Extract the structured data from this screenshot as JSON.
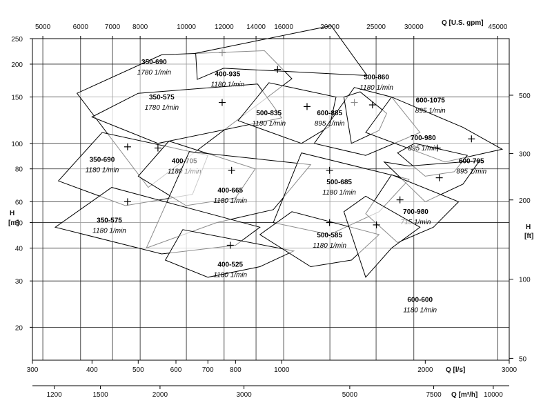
{
  "chart_data": {
    "type": "area",
    "axes": {
      "x_bottom": {
        "label": "Q [l/s]",
        "scale": "log",
        "range": [
          300,
          3000
        ],
        "ticks": [
          300,
          400,
          500,
          600,
          700,
          800,
          1000,
          2000,
          3000
        ]
      },
      "x_top": {
        "label": "Q [U.S. gpm]",
        "scale": "log",
        "ticks": [
          5000,
          6000,
          7000,
          8000,
          10000,
          12000,
          14000,
          16000,
          20000,
          25000,
          30000,
          45000
        ]
      },
      "x_bottom2": {
        "label": "Q [m³/h]",
        "scale": "log",
        "ticks": [
          1200,
          1500,
          2000,
          3000,
          5000,
          7500,
          10000
        ]
      },
      "y_left": {
        "label_line1": "H",
        "label_line2": "[m]",
        "scale": "log",
        "range": [
          15,
          250
        ],
        "ticks": [
          20,
          30,
          40,
          50,
          60,
          80,
          100,
          150,
          200,
          250
        ]
      },
      "y_right": {
        "label_line1": "H",
        "label_line2": "[ft]",
        "scale": "log",
        "ticks": [
          50,
          100,
          200,
          300,
          500
        ]
      }
    },
    "grid": true,
    "regions": [
      {
        "model": "350-690",
        "speed": "1780 1/min",
        "polygon": [
          [
            372,
            155
          ],
          [
            525,
            68
          ],
          [
            1050,
            176
          ],
          [
            920,
            225
          ],
          [
            560,
            217
          ]
        ],
        "marker": [
          750,
          221
        ],
        "label_at": [
          540,
          200
        ]
      },
      {
        "model": "400-935",
        "speed": "1180 1/min",
        "polygon": [
          [
            665,
            175
          ],
          [
            755,
            193
          ],
          [
            1510,
            181
          ],
          [
            1270,
            280
          ],
          [
            660,
            220
          ]
        ],
        "marker": [
          980,
          191
        ],
        "label_at": [
          770,
          180
        ]
      },
      {
        "model": "350-575",
        "speed": "1780 1/min",
        "polygon": [
          [
            400,
            126
          ],
          [
            550,
            100
          ],
          [
            1000,
            125
          ],
          [
            890,
            168
          ],
          [
            500,
            155
          ]
        ],
        "marker": [
          750,
          143
        ],
        "label_at": [
          560,
          147
        ]
      },
      {
        "model": "500-835",
        "speed": "1180 1/min",
        "polygon": [
          [
            810,
            122
          ],
          [
            940,
            170
          ],
          [
            1300,
            150
          ],
          [
            1260,
            116
          ],
          [
            1100,
            100
          ]
        ],
        "marker": [
          1130,
          138
        ],
        "label_at": [
          940,
          128
        ]
      },
      {
        "model": "600-885",
        "speed": "895 1/min",
        "polygon": [
          [
            1170,
            100
          ],
          [
            1420,
            163
          ],
          [
            1700,
            150
          ],
          [
            1950,
            110
          ],
          [
            1500,
            90
          ]
        ],
        "marker": [
          1420,
          143
        ],
        "label_at": [
          1260,
          128
        ]
      },
      {
        "model": "500-860",
        "speed": "1180 1/min",
        "polygon": [
          [
            1350,
            150
          ],
          [
            1460,
            157
          ],
          [
            1660,
            130
          ],
          [
            1600,
            112
          ],
          [
            1400,
            100
          ]
        ],
        "marker": [
          1550,
          140
        ],
        "label_at": [
          1580,
          175
        ]
      },
      {
        "model": "600-1075",
        "speed": "895 1/min",
        "polygon": [
          [
            1500,
            110
          ],
          [
            1700,
            150
          ],
          [
            2400,
            115
          ],
          [
            2900,
            95
          ],
          [
            2200,
            85
          ]
        ],
        "marker": [
          2500,
          104
        ],
        "label_at": [
          2050,
          143
        ]
      },
      {
        "model": "700-980",
        "speed": "895 1/min",
        "polygon": [
          [
            1750,
            92
          ],
          [
            1900,
            100
          ],
          [
            2450,
            90
          ],
          [
            2300,
            78
          ],
          [
            2000,
            75
          ]
        ],
        "marker": [
          2120,
          96
        ],
        "label_at": [
          1980,
          103
        ]
      },
      {
        "model": "350-690",
        "speed": "1180 1/min",
        "polygon": [
          [
            340,
            72
          ],
          [
            420,
            110
          ],
          [
            700,
            90
          ],
          [
            650,
            64
          ],
          [
            470,
            58
          ]
        ],
        "marker": [
          475,
          97
        ],
        "label_at": [
          420,
          85
        ]
      },
      {
        "model": "400-705",
        "speed": "1180 1/min",
        "polygon": [
          [
            500,
            75
          ],
          [
            580,
            102
          ],
          [
            880,
            80
          ],
          [
            800,
            62
          ],
          [
            630,
            58
          ]
        ],
        "marker": [
          550,
          96
        ],
        "label_at": [
          625,
          84
        ]
      },
      {
        "model": "400-665",
        "speed": "1180 1/min",
        "polygon": [
          [
            520,
            40
          ],
          [
            640,
            93
          ],
          [
            1150,
            83
          ],
          [
            960,
            56
          ],
          [
            730,
            50
          ]
        ],
        "marker": [
          785,
          79
        ],
        "label_at": [
          780,
          65
        ]
      },
      {
        "model": "500-685",
        "speed": "1180 1/min",
        "polygon": [
          [
            960,
            50
          ],
          [
            1100,
            92
          ],
          [
            1850,
            73
          ],
          [
            1600,
            55
          ],
          [
            1260,
            45
          ]
        ],
        "marker": [
          1260,
          79
        ],
        "label_at": [
          1320,
          70
        ]
      },
      {
        "model": "600-705",
        "speed": "895 1/min",
        "polygon": [
          [
            1640,
            85
          ],
          [
            1850,
            82
          ],
          [
            2600,
            86
          ],
          [
            2400,
            70
          ],
          [
            2000,
            60
          ]
        ],
        "marker": [
          2140,
          74
        ],
        "label_at": [
          2500,
          84
        ]
      },
      {
        "model": "700-980",
        "speed": "715 1/min",
        "polygon": [
          [
            1500,
            54
          ],
          [
            1700,
            76
          ],
          [
            2350,
            60
          ],
          [
            2080,
            48
          ],
          [
            1750,
            42
          ]
        ],
        "marker": [
          1770,
          61
        ],
        "label_at": [
          1910,
          54
        ]
      },
      {
        "model": "350-575",
        "speed": "1180 1/min",
        "polygon": [
          [
            335,
            48
          ],
          [
            440,
            68
          ],
          [
            900,
            48
          ],
          [
            800,
            41
          ],
          [
            560,
            38
          ]
        ],
        "marker": [
          475,
          60
        ],
        "label_at": [
          435,
          50
        ]
      },
      {
        "model": "400-525",
        "speed": "1180 1/min",
        "polygon": [
          [
            570,
            36
          ],
          [
            620,
            47
          ],
          [
            1060,
            39
          ],
          [
            900,
            34
          ],
          [
            700,
            31
          ]
        ],
        "marker": [
          780,
          41
        ],
        "label_at": [
          780,
          34
        ]
      },
      {
        "model": "500-585",
        "speed": "1180 1/min",
        "polygon": [
          [
            900,
            45
          ],
          [
            1050,
            55
          ],
          [
            1600,
            45
          ],
          [
            1400,
            36
          ],
          [
            1150,
            34
          ]
        ],
        "marker": [
          1260,
          50
        ],
        "label_at": [
          1260,
          44
        ]
      },
      {
        "model": "600-600",
        "speed": "1180 1/min",
        "polygon": [
          [
            1350,
            55
          ],
          [
            1500,
            63
          ],
          [
            1950,
            48
          ],
          [
            1700,
            40
          ],
          [
            1500,
            31
          ]
        ],
        "marker": [
          1580,
          49
        ],
        "label_at": [
          1950,
          25
        ]
      }
    ]
  }
}
